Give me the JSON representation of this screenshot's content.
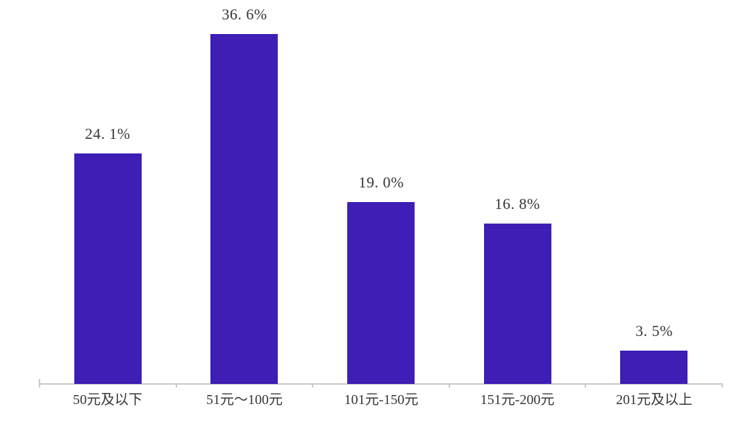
{
  "chart_data": {
    "type": "bar",
    "title": "",
    "xlabel": "",
    "ylabel": "",
    "categories": [
      "50元及以下",
      "51元～100元",
      "101元-150元",
      "151元-200元",
      "201元及以上"
    ],
    "values": [
      24.1,
      36.6,
      19.0,
      16.8,
      3.5
    ],
    "value_labels": [
      "24. 1%",
      "36. 6%",
      "19. 0%",
      "16. 8%",
      "3. 5%"
    ],
    "ylim": [
      0,
      40
    ],
    "grid": false,
    "legend": false,
    "y_axis_visible": false,
    "colors": {
      "bar": "#3e1eb4",
      "axis": "#c8c8c8",
      "text": "#363636",
      "background": "#ffffff"
    }
  }
}
